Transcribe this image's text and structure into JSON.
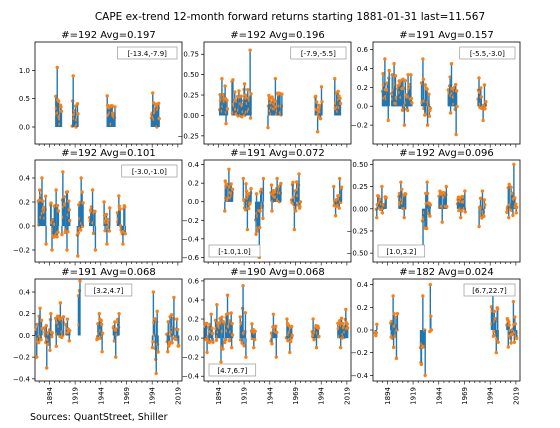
{
  "figure": {
    "title": "CAPE ex-trend 12-month forward returns starting 1881-01-31  last=11.567",
    "source": "Sources: QuantStreet, Shiller",
    "colors": {
      "stem": "#1f77b4",
      "marker": "#ff7f0e",
      "axis": "#000000"
    }
  },
  "chart_data": [
    {
      "type": "stem",
      "title": "#=192 Avg=0.197",
      "bin_label": "[-13.4,-7.9]",
      "box_pos": "top-right",
      "ylim": [
        -0.3,
        1.5
      ],
      "yticks": [
        0.0,
        0.5,
        1.0
      ],
      "yticklabels": [
        "0.0",
        "0.5",
        "1.0"
      ],
      "xlim": [
        1880,
        2023
      ],
      "xticks": [
        1894,
        1919,
        1944,
        1969,
        1994,
        2019
      ],
      "xticklabels": [],
      "clusters": [
        [
          1900,
          1906,
          0.05,
          0.35,
          1.05
        ],
        [
          1916,
          1922,
          0.0,
          0.25,
          0.9
        ],
        [
          1950,
          1958,
          0.05,
          0.3,
          0.55
        ],
        [
          1993,
          2001,
          0.0,
          0.3,
          0.6
        ]
      ]
    },
    {
      "type": "stem",
      "title": "#=192 Avg=0.196",
      "bin_label": "[-7.9,-5.5]",
      "box_pos": "top-right",
      "ylim": [
        -0.35,
        0.9
      ],
      "yticks": [
        -0.25,
        0.0,
        0.25,
        0.5,
        0.75
      ],
      "yticklabels": [
        "−0.25",
        "0.00",
        "0.25",
        "0.50",
        "0.75"
      ],
      "xlim": [
        1880,
        2023
      ],
      "xticks": [
        1894,
        1919,
        1944,
        1969,
        1994,
        2019
      ],
      "xticklabels": [],
      "clusters": [
        [
          1895,
          1903,
          -0.1,
          0.2,
          0.45
        ],
        [
          1907,
          1926,
          0.0,
          0.2,
          0.8
        ],
        [
          1942,
          1956,
          -0.15,
          0.15,
          0.45
        ],
        [
          1988,
          1995,
          -0.2,
          0.1,
          0.35
        ],
        [
          2007,
          2013,
          0.05,
          0.2,
          0.45
        ]
      ]
    },
    {
      "type": "stem",
      "title": "#=191 Avg=0.157",
      "bin_label": "[-5.5,-3.0]",
      "box_pos": "top-right",
      "ylim": [
        -0.4,
        0.68
      ],
      "yticks": [
        -0.2,
        0.0,
        0.2,
        0.4,
        0.6
      ],
      "yticklabels": [
        "−0.2",
        "0.0",
        "0.2",
        "0.4",
        "0.6"
      ],
      "xlim": [
        1880,
        2023
      ],
      "xticks": [
        1894,
        1919,
        1944,
        1969,
        1994,
        2019
      ],
      "xticklabels": [],
      "clusters": [
        [
          1889,
          1896,
          -0.15,
          0.2,
          0.5
        ],
        [
          1898,
          1918,
          -0.2,
          0.15,
          0.45
        ],
        [
          1927,
          1936,
          -0.2,
          0.1,
          0.5
        ],
        [
          1953,
          1962,
          -0.3,
          0.1,
          0.45
        ],
        [
          1982,
          1990,
          -0.15,
          0.1,
          0.3
        ]
      ]
    },
    {
      "type": "stem",
      "title": "#=192 Avg=0.101",
      "bin_label": "[-3.0,-1.0]",
      "box_pos": "top-right",
      "ylim": [
        -0.3,
        0.55
      ],
      "yticks": [
        -0.2,
        0.0,
        0.2,
        0.4
      ],
      "yticklabels": [
        "−0.2",
        "0.0",
        "0.2",
        "0.4"
      ],
      "xlim": [
        1880,
        2023
      ],
      "xticks": [
        1894,
        1919,
        1944,
        1969,
        1994,
        2019
      ],
      "xticklabels": [],
      "clusters": [
        [
          1883,
          1891,
          -0.15,
          0.15,
          0.4
        ],
        [
          1895,
          1903,
          -0.2,
          0.05,
          0.3
        ],
        [
          1906,
          1914,
          -0.2,
          0.1,
          0.45
        ],
        [
          1921,
          1927,
          -0.25,
          0.1,
          0.4
        ],
        [
          1933,
          1939,
          -0.2,
          0.05,
          0.3
        ],
        [
          1947,
          1953,
          -0.15,
          0.05,
          0.2
        ],
        [
          1960,
          1968,
          -0.15,
          0.05,
          0.25
        ]
      ]
    },
    {
      "type": "stem",
      "title": "#=191 Avg=0.072",
      "bin_label": "[-1.0,1.0]",
      "box_pos": "bottom-left",
      "ylim": [
        -0.65,
        0.45
      ],
      "yticks": [
        -0.6,
        -0.4,
        -0.2,
        0.0,
        0.2,
        0.4
      ],
      "yticklabels": [
        "−0.6",
        "−0.4",
        "−0.2",
        "0.0",
        "0.2",
        "0.4"
      ],
      "xlim": [
        1880,
        2023
      ],
      "xticks": [
        1894,
        1919,
        1944,
        1969,
        1994,
        2019
      ],
      "xticklabels": [],
      "clusters": [
        [
          1900,
          1908,
          -0.1,
          0.1,
          0.35
        ],
        [
          1918,
          1926,
          -0.3,
          0.05,
          0.25
        ],
        [
          1930,
          1938,
          -0.6,
          -0.1,
          0.25
        ],
        [
          1945,
          1955,
          -0.1,
          0.1,
          0.25
        ],
        [
          1965,
          1974,
          -0.3,
          0.05,
          0.3
        ],
        [
          2006,
          2014,
          -0.15,
          0.05,
          0.25
        ]
      ]
    },
    {
      "type": "stem",
      "title": "#=192 Avg=0.096",
      "bin_label": "[1.0,3.2]",
      "box_pos": "bottom-left",
      "ylim": [
        -0.6,
        0.55
      ],
      "yticks": [
        -0.5,
        -0.25,
        0.0,
        0.25,
        0.5
      ],
      "yticklabels": [
        "−0.50",
        "−0.25",
        "0.00",
        "0.25",
        "0.50"
      ],
      "xlim": [
        1880,
        2023
      ],
      "xticks": [
        1894,
        1919,
        1944,
        1969,
        1994,
        2019
      ],
      "xticklabels": [],
      "clusters": [
        [
          1883,
          1893,
          -0.1,
          0.05,
          0.25
        ],
        [
          1905,
          1912,
          -0.1,
          0.1,
          0.3
        ],
        [
          1928,
          1936,
          -0.5,
          0.0,
          0.3
        ],
        [
          1944,
          1952,
          -0.15,
          0.1,
          0.25
        ],
        [
          1962,
          1970,
          -0.1,
          0.05,
          0.2
        ],
        [
          1983,
          1989,
          -0.2,
          0.0,
          0.2
        ],
        [
          2010,
          2020,
          -0.1,
          0.1,
          0.5
        ]
      ]
    },
    {
      "type": "stem",
      "title": "#=191 Avg=0.068",
      "bin_label": "[3.2,4.7]",
      "box_pos": "top-center",
      "ylim": [
        -0.42,
        0.52
      ],
      "yticks": [
        -0.4,
        -0.2,
        0.0,
        0.2,
        0.4
      ],
      "yticklabels": [
        "−0.4",
        "−0.2",
        "0.0",
        "0.2",
        "0.4"
      ],
      "xlim": [
        1880,
        2023
      ],
      "xticks": [
        1894,
        1919,
        1944,
        1969,
        1994,
        2019
      ],
      "xticklabels": [
        "1894",
        "1919",
        "1944",
        "1969",
        "1994",
        "2019"
      ],
      "clusters": [
        [
          1881,
          1887,
          -0.2,
          0.05,
          0.25
        ],
        [
          1889,
          1897,
          -0.3,
          0.0,
          0.2
        ],
        [
          1900,
          1908,
          -0.1,
          0.1,
          0.3
        ],
        [
          1910,
          1914,
          -0.05,
          0.05,
          0.15
        ],
        [
          1922,
          1924,
          0.1,
          0.3,
          0.5
        ],
        [
          1940,
          1946,
          -0.15,
          0.05,
          0.2
        ],
        [
          1956,
          1962,
          -0.2,
          0.05,
          0.2
        ],
        [
          1994,
          2000,
          -0.35,
          0.0,
          0.4
        ],
        [
          2008,
          2020,
          -0.15,
          0.05,
          0.35
        ]
      ]
    },
    {
      "type": "stem",
      "title": "#=190 Avg=0.068",
      "bin_label": "[4.7,6.7]",
      "box_pos": "bottom-left",
      "ylim": [
        -0.45,
        0.62
      ],
      "yticks": [
        -0.4,
        -0.2,
        0.0,
        0.2,
        0.4,
        0.6
      ],
      "yticklabels": [
        "−0.4",
        "−0.2",
        "0.0",
        "0.2",
        "0.4",
        "0.6"
      ],
      "xlim": [
        1880,
        2023
      ],
      "xticks": [
        1894,
        1919,
        1944,
        1969,
        1994,
        2019
      ],
      "xticklabels": [
        "1894",
        "1919",
        "1944",
        "1969",
        "1994",
        "2019"
      ],
      "clusters": [
        [
          1881,
          1889,
          -0.15,
          0.05,
          0.25
        ],
        [
          1891,
          1899,
          -0.25,
          0.05,
          0.35
        ],
        [
          1900,
          1908,
          -0.1,
          0.1,
          0.45
        ],
        [
          1915,
          1921,
          -0.2,
          0.1,
          0.55
        ],
        [
          1926,
          1930,
          -0.1,
          0.05,
          0.15
        ],
        [
          1945,
          1951,
          -0.2,
          0.05,
          0.25
        ],
        [
          1960,
          1966,
          -0.15,
          0.05,
          0.2
        ],
        [
          1985,
          1992,
          -0.1,
          0.05,
          0.2
        ],
        [
          2010,
          2020,
          -0.1,
          0.1,
          0.3
        ]
      ]
    },
    {
      "type": "stem",
      "title": "#=182 Avg=0.024",
      "bin_label": "[6.7,22.7]",
      "box_pos": "top-right",
      "ylim": [
        -0.45,
        0.45
      ],
      "yticks": [
        -0.4,
        -0.2,
        0.0,
        0.2,
        0.4
      ],
      "yticklabels": [
        "−0.4",
        "−0.2",
        "0.0",
        "0.2",
        "0.4"
      ],
      "xlim": [
        1880,
        2023
      ],
      "xticks": [
        1894,
        1919,
        1944,
        1969,
        1994,
        2019
      ],
      "xticklabels": [
        "1894",
        "1919",
        "1944",
        "1969",
        "1994",
        "2019"
      ],
      "clusters": [
        [
          1882,
          1884,
          -0.05,
          0.0,
          0.05
        ],
        [
          1897,
          1904,
          -0.25,
          0.0,
          0.3
        ],
        [
          1926,
          1931,
          -0.4,
          -0.1,
          0.3
        ],
        [
          1935,
          1937,
          0.0,
          0.1,
          0.4
        ],
        [
          1995,
          2002,
          -0.2,
          0.05,
          0.35
        ],
        [
          2010,
          2020,
          -0.15,
          0.0,
          0.25
        ]
      ]
    }
  ]
}
